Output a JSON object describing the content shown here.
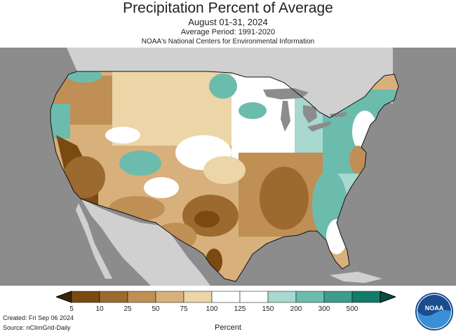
{
  "title": "Precipitation Percent of Average",
  "subtitle": "August 01-31, 2024",
  "average_period": "Average Period: 1991-2020",
  "agency": "NOAA's National Centers for Environmental Information",
  "created": "Created: Fri Sep 06 2024",
  "source": "Source: nClimGrid-Daily",
  "legend": {
    "units": "Percent",
    "ticks": [
      "5",
      "10",
      "25",
      "50",
      "75",
      "100",
      "125",
      "150",
      "200",
      "300",
      "500"
    ],
    "colors": [
      "#7a4a12",
      "#9c6a2e",
      "#bf8f55",
      "#d8b07c",
      "#ecd5a6",
      "#ffffff",
      "#ffffff",
      "#a8d8cf",
      "#6cbcae",
      "#3e9c8c",
      "#147a6a"
    ],
    "low_arrow_color": "#3d2508",
    "high_arrow_color": "#0a4d42"
  },
  "map_colors": {
    "background": "#8c8c8c",
    "land_outside": "#d0d0d0",
    "water": "#8c8c8c"
  },
  "logo_text": "NOAA"
}
